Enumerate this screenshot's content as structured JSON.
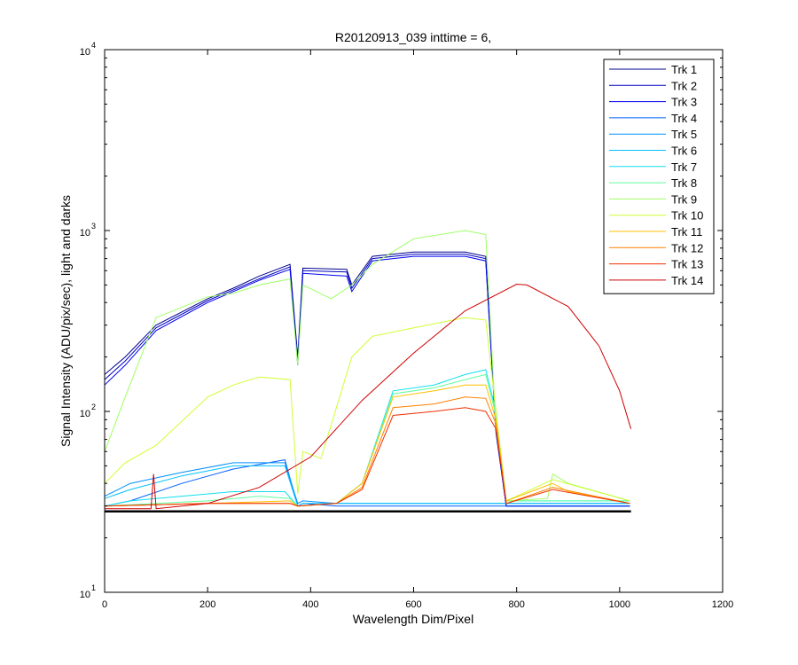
{
  "chart_data": {
    "type": "line",
    "title": "R20120913_039 inttime = 6,",
    "xlabel": "Wavelength Dim/Pixel",
    "ylabel": "Signal Intensity (ADU/pix/sec), light and darks",
    "xlim": [
      0,
      1200
    ],
    "ylim": [
      10,
      10000
    ],
    "yscale": "log",
    "grid": false,
    "legend_position": "top-right",
    "x_ticks": [
      0,
      200,
      400,
      600,
      800,
      1000,
      1200
    ],
    "x_tick_labels": [
      "0",
      "200",
      "400",
      "600",
      "800",
      "1000",
      "1200"
    ],
    "y_ticks": [
      10,
      100,
      1000,
      10000
    ],
    "y_tick_labels": [
      {
        "base": "10",
        "exp": "1"
      },
      {
        "base": "10",
        "exp": "2"
      },
      {
        "base": "10",
        "exp": "3"
      },
      {
        "base": "10",
        "exp": "4"
      }
    ],
    "series": [
      {
        "name": "Trk 1",
        "color": "#00008f",
        "points": [
          [
            0,
            160
          ],
          [
            40,
            200
          ],
          [
            100,
            300
          ],
          [
            200,
            420
          ],
          [
            250,
            480
          ],
          [
            300,
            560
          ],
          [
            360,
            650
          ],
          [
            375,
            200
          ],
          [
            385,
            620
          ],
          [
            470,
            610
          ],
          [
            480,
            500
          ],
          [
            520,
            720
          ],
          [
            600,
            760
          ],
          [
            700,
            760
          ],
          [
            740,
            720
          ],
          [
            760,
            80
          ],
          [
            780,
            30
          ],
          [
            1020,
            30
          ]
        ]
      },
      {
        "name": "Trk 2",
        "color": "#0000bf",
        "points": [
          [
            0,
            150
          ],
          [
            40,
            190
          ],
          [
            100,
            290
          ],
          [
            200,
            410
          ],
          [
            250,
            470
          ],
          [
            300,
            540
          ],
          [
            360,
            630
          ],
          [
            375,
            190
          ],
          [
            385,
            600
          ],
          [
            470,
            590
          ],
          [
            480,
            480
          ],
          [
            520,
            700
          ],
          [
            600,
            740
          ],
          [
            700,
            740
          ],
          [
            740,
            700
          ],
          [
            760,
            78
          ],
          [
            780,
            30
          ],
          [
            1020,
            30
          ]
        ]
      },
      {
        "name": "Trk 3",
        "color": "#0000ef",
        "points": [
          [
            0,
            140
          ],
          [
            40,
            180
          ],
          [
            100,
            280
          ],
          [
            200,
            400
          ],
          [
            250,
            460
          ],
          [
            300,
            530
          ],
          [
            360,
            610
          ],
          [
            375,
            180
          ],
          [
            385,
            580
          ],
          [
            470,
            560
          ],
          [
            480,
            460
          ],
          [
            520,
            680
          ],
          [
            600,
            720
          ],
          [
            700,
            720
          ],
          [
            740,
            680
          ],
          [
            760,
            76
          ],
          [
            780,
            30
          ],
          [
            1020,
            30
          ]
        ]
      },
      {
        "name": "Trk 4",
        "color": "#0060ff",
        "points": [
          [
            0,
            30
          ],
          [
            50,
            32
          ],
          [
            150,
            40
          ],
          [
            250,
            48
          ],
          [
            350,
            54
          ],
          [
            375,
            30
          ],
          [
            385,
            31
          ],
          [
            450,
            30
          ],
          [
            1020,
            30
          ]
        ]
      },
      {
        "name": "Trk 5",
        "color": "#0090ff",
        "points": [
          [
            0,
            34
          ],
          [
            50,
            40
          ],
          [
            150,
            46
          ],
          [
            250,
            52
          ],
          [
            350,
            52
          ],
          [
            375,
            31
          ],
          [
            385,
            32
          ],
          [
            450,
            31
          ],
          [
            1020,
            31
          ]
        ]
      },
      {
        "name": "Trk 6",
        "color": "#00bfff",
        "points": [
          [
            0,
            33
          ],
          [
            50,
            37
          ],
          [
            150,
            44
          ],
          [
            250,
            50
          ],
          [
            350,
            50
          ],
          [
            375,
            30
          ],
          [
            385,
            31
          ],
          [
            1020,
            31
          ]
        ]
      },
      {
        "name": "Trk 7",
        "color": "#10e0ef",
        "points": [
          [
            0,
            30
          ],
          [
            50,
            32
          ],
          [
            150,
            34
          ],
          [
            250,
            36
          ],
          [
            350,
            36
          ],
          [
            375,
            30
          ],
          [
            450,
            31
          ],
          [
            500,
            40
          ],
          [
            560,
            130
          ],
          [
            640,
            140
          ],
          [
            700,
            160
          ],
          [
            740,
            170
          ],
          [
            760,
            100
          ],
          [
            780,
            32
          ],
          [
            1020,
            32
          ]
        ]
      },
      {
        "name": "Trk 8",
        "color": "#60ff9f",
        "points": [
          [
            0,
            30
          ],
          [
            200,
            32
          ],
          [
            300,
            34
          ],
          [
            360,
            33
          ],
          [
            375,
            30
          ],
          [
            450,
            31
          ],
          [
            500,
            40
          ],
          [
            560,
            125
          ],
          [
            640,
            135
          ],
          [
            700,
            150
          ],
          [
            740,
            160
          ],
          [
            760,
            95
          ],
          [
            780,
            32
          ],
          [
            1020,
            32
          ]
        ]
      },
      {
        "name": "Trk 9",
        "color": "#9fff60",
        "points": [
          [
            0,
            60
          ],
          [
            40,
            120
          ],
          [
            100,
            330
          ],
          [
            200,
            430
          ],
          [
            250,
            450
          ],
          [
            300,
            500
          ],
          [
            360,
            540
          ],
          [
            375,
            180
          ],
          [
            385,
            500
          ],
          [
            440,
            420
          ],
          [
            480,
            500
          ],
          [
            520,
            650
          ],
          [
            600,
            900
          ],
          [
            700,
            1000
          ],
          [
            740,
            950
          ],
          [
            760,
            80
          ],
          [
            780,
            32
          ],
          [
            860,
            33
          ],
          [
            870,
            45
          ],
          [
            900,
            40
          ],
          [
            1020,
            32
          ]
        ]
      },
      {
        "name": "Trk 10",
        "color": "#cfff30",
        "points": [
          [
            0,
            40
          ],
          [
            40,
            52
          ],
          [
            100,
            65
          ],
          [
            200,
            120
          ],
          [
            250,
            140
          ],
          [
            300,
            155
          ],
          [
            360,
            150
          ],
          [
            375,
            35
          ],
          [
            385,
            60
          ],
          [
            420,
            55
          ],
          [
            480,
            200
          ],
          [
            520,
            260
          ],
          [
            600,
            290
          ],
          [
            700,
            330
          ],
          [
            740,
            320
          ],
          [
            760,
            100
          ],
          [
            780,
            32
          ],
          [
            870,
            42
          ],
          [
            1020,
            32
          ]
        ]
      },
      {
        "name": "Trk 11",
        "color": "#ffbf00",
        "points": [
          [
            0,
            30
          ],
          [
            200,
            31
          ],
          [
            360,
            32
          ],
          [
            375,
            30
          ],
          [
            450,
            31
          ],
          [
            500,
            40
          ],
          [
            560,
            120
          ],
          [
            640,
            130
          ],
          [
            700,
            140
          ],
          [
            740,
            140
          ],
          [
            760,
            90
          ],
          [
            780,
            32
          ],
          [
            870,
            40
          ],
          [
            900,
            36
          ],
          [
            1020,
            31
          ]
        ]
      },
      {
        "name": "Trk 12",
        "color": "#ff8000",
        "points": [
          [
            0,
            30
          ],
          [
            200,
            31
          ],
          [
            360,
            31
          ],
          [
            375,
            30
          ],
          [
            450,
            31
          ],
          [
            500,
            38
          ],
          [
            560,
            105
          ],
          [
            640,
            110
          ],
          [
            700,
            120
          ],
          [
            740,
            118
          ],
          [
            760,
            85
          ],
          [
            780,
            31
          ],
          [
            870,
            38
          ],
          [
            1020,
            31
          ]
        ]
      },
      {
        "name": "Trk 13",
        "color": "#ef3000",
        "points": [
          [
            0,
            30
          ],
          [
            200,
            31
          ],
          [
            360,
            31
          ],
          [
            375,
            30
          ],
          [
            450,
            31
          ],
          [
            500,
            37
          ],
          [
            560,
            95
          ],
          [
            640,
            100
          ],
          [
            700,
            105
          ],
          [
            740,
            100
          ],
          [
            760,
            80
          ],
          [
            780,
            31
          ],
          [
            870,
            37
          ],
          [
            1020,
            31
          ]
        ]
      },
      {
        "name": "Trk 14",
        "color": "#cf0000",
        "points": [
          [
            0,
            29
          ],
          [
            90,
            29
          ],
          [
            95,
            45
          ],
          [
            100,
            29
          ],
          [
            200,
            31
          ],
          [
            300,
            38
          ],
          [
            400,
            56
          ],
          [
            500,
            115
          ],
          [
            600,
            210
          ],
          [
            700,
            360
          ],
          [
            800,
            505
          ],
          [
            820,
            500
          ],
          [
            900,
            380
          ],
          [
            960,
            230
          ],
          [
            1000,
            130
          ],
          [
            1022,
            80
          ]
        ]
      }
    ],
    "dark_level": {
      "color": "#000000",
      "value": 28,
      "x_range": [
        0,
        1022
      ]
    }
  }
}
